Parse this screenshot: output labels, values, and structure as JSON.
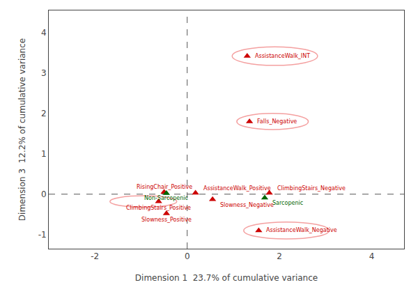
{
  "chart_data": {
    "type": "scatter",
    "xlabel": "Dimension 1  23.7% of cumulative variance",
    "ylabel": "Dimension 3  12.2% of cumulative variance",
    "xlim": [
      -3.0,
      4.7
    ],
    "ylim": [
      -1.35,
      4.55
    ],
    "xticks": [
      -2,
      0,
      2,
      4
    ],
    "yticks": [
      -1,
      0,
      1,
      2,
      3,
      4
    ],
    "grid": false,
    "marker": "triangle-up",
    "hlines": [
      0
    ],
    "vlines": [
      0
    ],
    "ellipse_color": "#f4a0a0",
    "point_labels": [
      "AssistanceWalk_INT",
      "Falls_Negative",
      "AssistanceWalk_Negative",
      "ClimbingStairs_Positive",
      "RisingChair_Positive",
      "Non-Sarcopenic",
      "AssistanceWalk_Positive",
      "Slowness_Negative",
      "ClimbingStairs_Negative",
      "Sarcopenic",
      "Slowness_Positive"
    ],
    "x": [
      1.3,
      1.35,
      1.55,
      -0.62,
      -0.5,
      -0.45,
      0.18,
      0.55,
      1.78,
      1.68,
      -0.45
    ],
    "values": [
      3.42,
      1.8,
      -0.9,
      -0.18,
      0.05,
      0.02,
      0.03,
      -0.13,
      0.03,
      -0.09,
      -0.48
    ],
    "colors": [
      "#cc0000",
      "#cc0000",
      "#cc0000",
      "#cc0000",
      "#cc0000",
      "#006600",
      "#cc0000",
      "#cc0000",
      "#cc0000",
      "#006600",
      "#cc0000"
    ],
    "ellipses": [
      {
        "cx": 1.9,
        "cy": 3.42,
        "w": 1.85,
        "h": 0.46
      },
      {
        "cx": 1.85,
        "cy": 1.8,
        "w": 1.55,
        "h": 0.4
      },
      {
        "cx": 2.15,
        "cy": -0.9,
        "w": 1.85,
        "h": 0.42
      },
      {
        "cx": -0.95,
        "cy": -0.18,
        "w": 1.45,
        "h": 0.28
      },
      null,
      null,
      null,
      null,
      null,
      null,
      null
    ]
  }
}
